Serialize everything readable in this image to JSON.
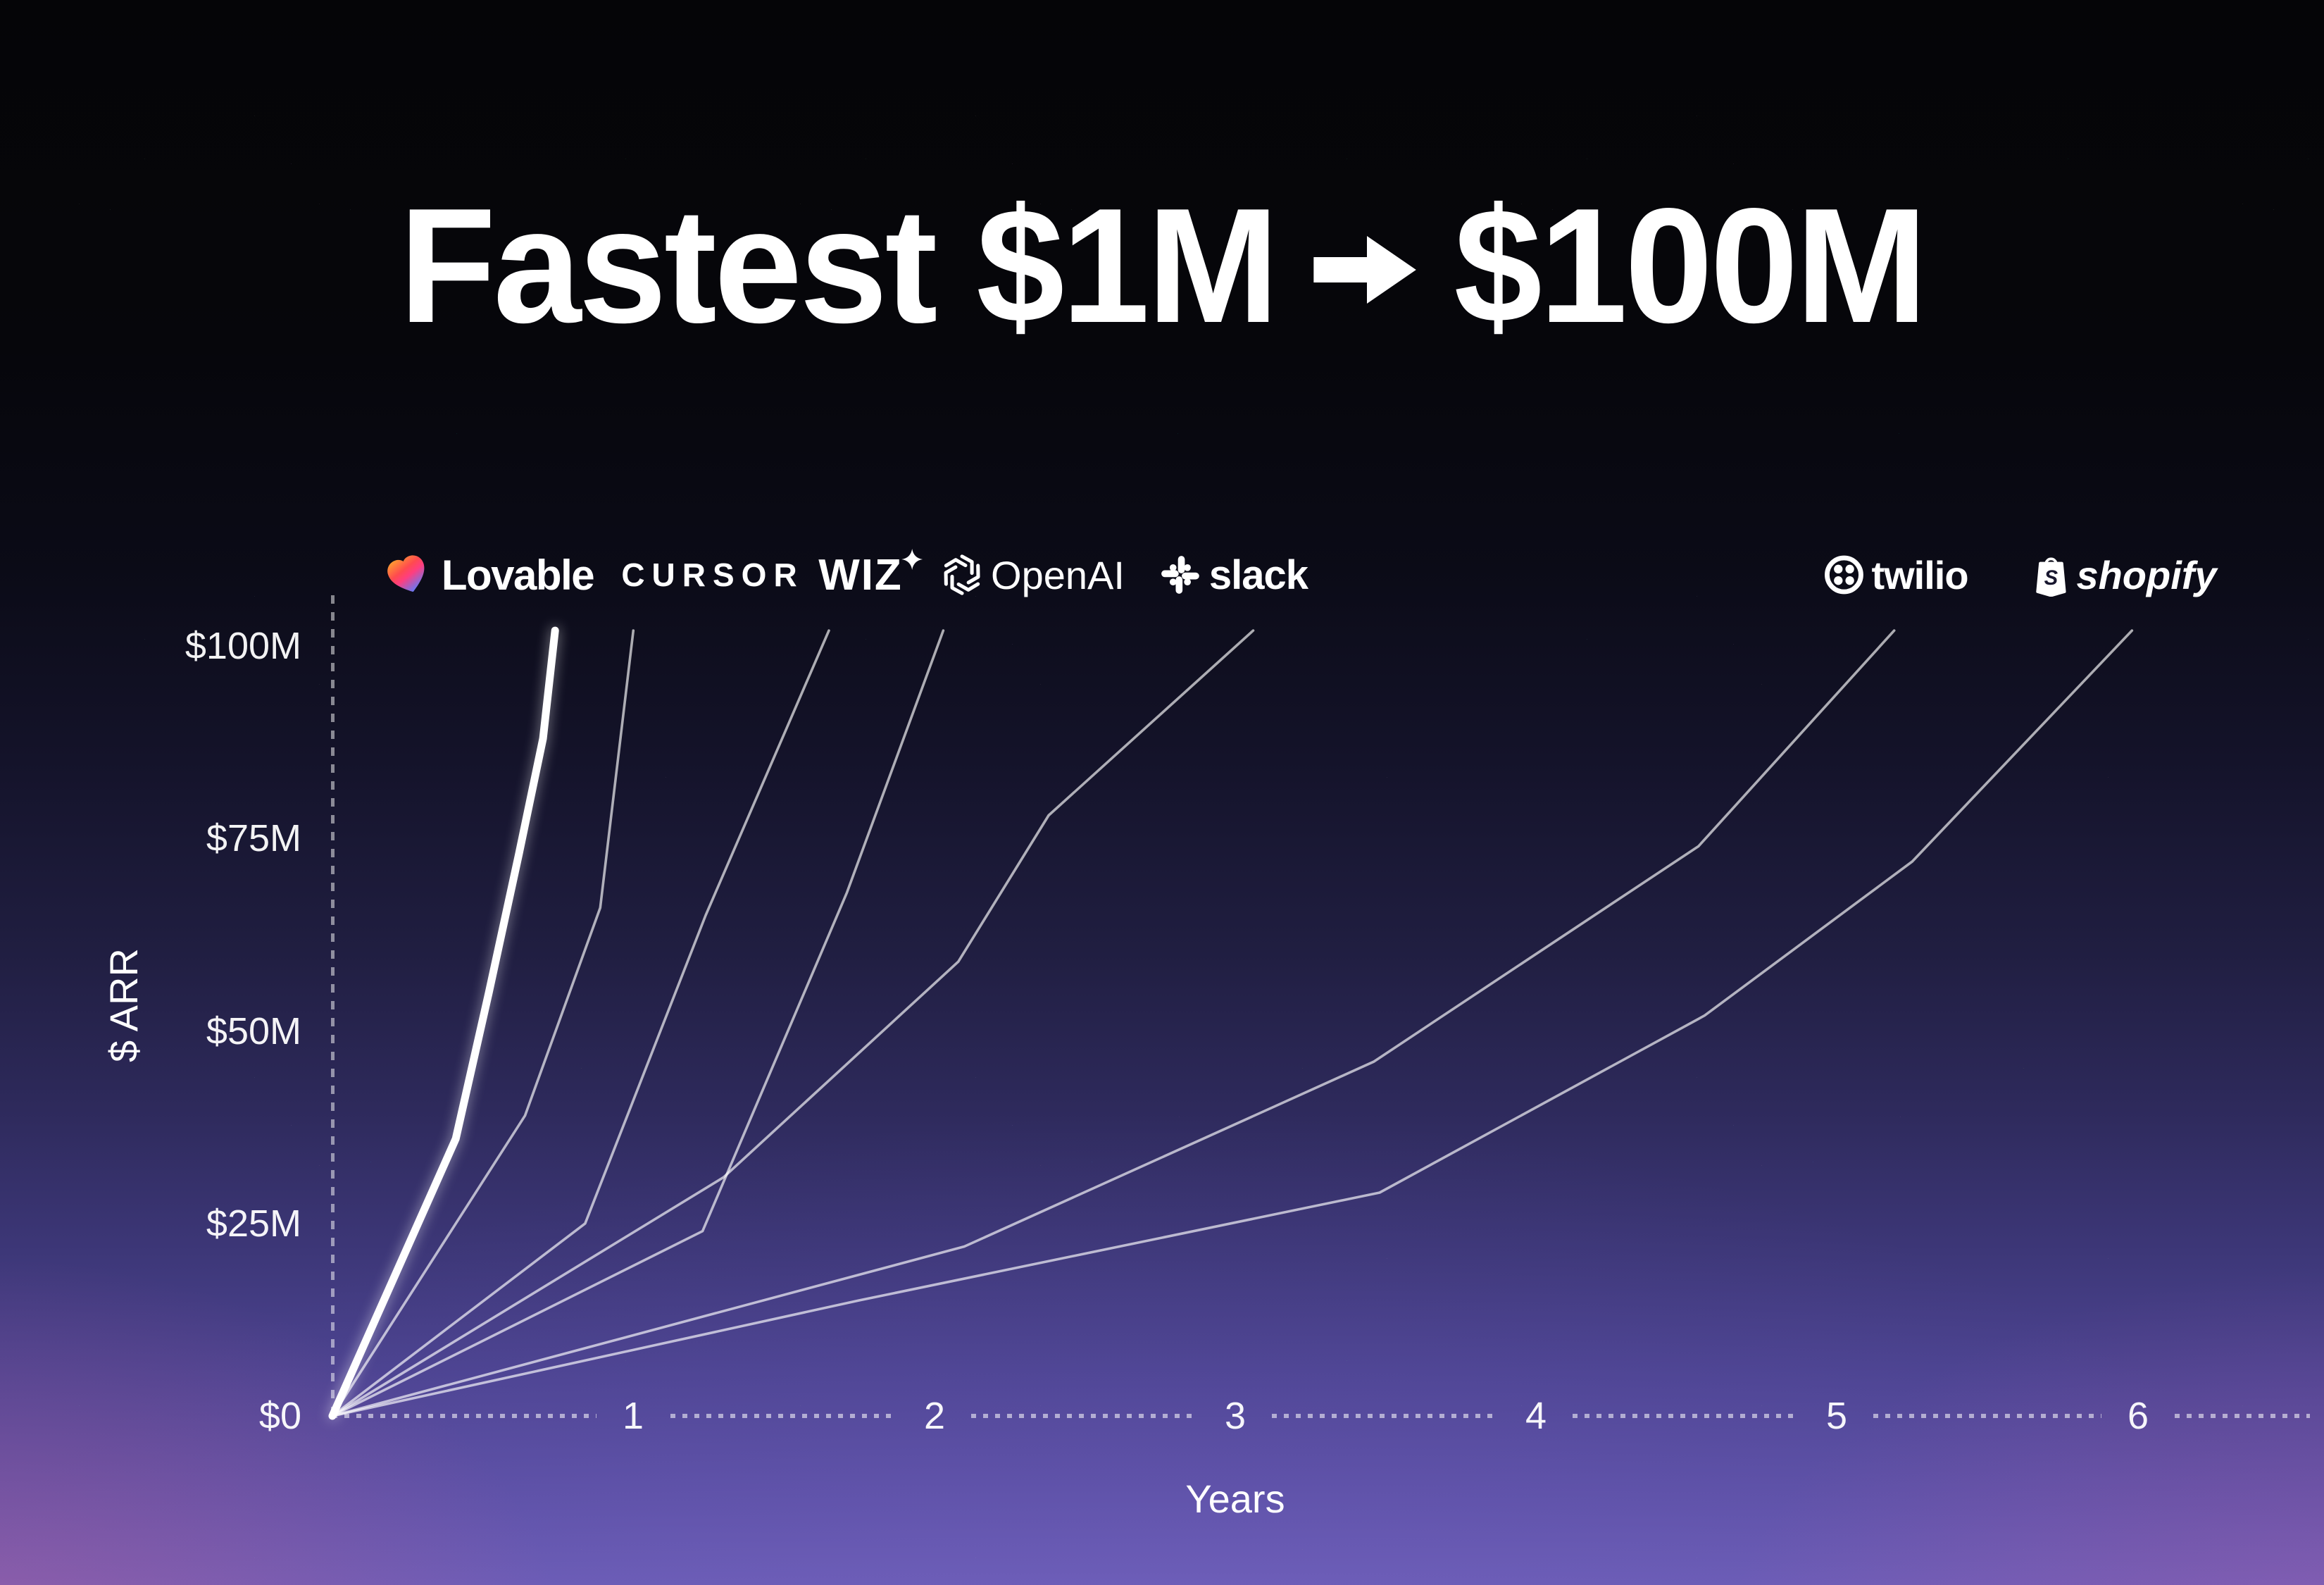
{
  "title": {
    "part1": "Fastest $1M",
    "arrow": "→",
    "part2": "$100M"
  },
  "axes": {
    "y_label": "$ ARR",
    "x_label": "Years"
  },
  "logos": [
    {
      "id": "lovable",
      "label": "Lovable",
      "icon": "lovable-heart-icon"
    },
    {
      "id": "cursor",
      "label": "CURSOR",
      "icon": "cursor-wordmark"
    },
    {
      "id": "wiz",
      "label": "WIZ",
      "icon": "wiz-sparkle-icon"
    },
    {
      "id": "openai",
      "label": "OpenAI",
      "icon": "openai-logo-icon"
    },
    {
      "id": "slack",
      "label": "slack",
      "icon": "slack-logo-icon"
    },
    {
      "id": "twilio",
      "label": "twilio",
      "icon": "twilio-logo-icon"
    },
    {
      "id": "shopify",
      "label": "shopify",
      "icon": "shopify-bag-icon"
    }
  ],
  "colors": {
    "background_top": "#050507",
    "background_bottom": "#6a5cb4",
    "corner_glow": "#c864a0",
    "line": "rgba(255,255,255,0.66)",
    "emphasis_line": "#ffffff",
    "heart_gradient": [
      "#ffa02f",
      "#ff4a4f",
      "#ff3e7f",
      "#5f7cfa"
    ]
  },
  "chart_data": {
    "type": "line",
    "title": "Fastest $1M → $100M",
    "xlabel": "Years",
    "ylabel": "$ ARR",
    "x_ticks": [
      "1",
      "2",
      "3",
      "4",
      "5",
      "6"
    ],
    "y_ticks": [
      "$100M",
      "$75M",
      "$50M",
      "$25M",
      "$0"
    ],
    "y_tick_values": [
      100,
      75,
      50,
      25,
      0
    ],
    "xlim": [
      0,
      6.6
    ],
    "ylim": [
      0,
      105
    ],
    "grid": false,
    "legend_position": "logo row above the top of each line",
    "series": [
      {
        "name": "Lovable",
        "emphasis": true,
        "years_to_100m": 0.74,
        "points": [
          [
            0,
            0
          ],
          [
            0.41,
            36
          ],
          [
            0.52,
            55
          ],
          [
            0.62,
            73
          ],
          [
            0.7,
            88
          ],
          [
            0.74,
            102
          ]
        ]
      },
      {
        "name": "Cursor",
        "emphasis": false,
        "years_to_100m": 1.0,
        "points": [
          [
            0,
            0
          ],
          [
            0.64,
            39
          ],
          [
            0.89,
            66
          ],
          [
            1.0,
            102
          ]
        ]
      },
      {
        "name": "Wiz",
        "emphasis": false,
        "years_to_100m": 1.65,
        "points": [
          [
            0,
            0
          ],
          [
            0.84,
            25
          ],
          [
            1.24,
            65
          ],
          [
            1.65,
            102
          ]
        ]
      },
      {
        "name": "OpenAI",
        "emphasis": false,
        "years_to_100m": 2.03,
        "points": [
          [
            0,
            0
          ],
          [
            1.23,
            24
          ],
          [
            1.71,
            68
          ],
          [
            2.03,
            102
          ]
        ]
      },
      {
        "name": "Slack",
        "emphasis": false,
        "years_to_100m": 3.06,
        "points": [
          [
            0,
            0
          ],
          [
            1.3,
            31
          ],
          [
            2.08,
            59
          ],
          [
            2.38,
            78
          ],
          [
            3.06,
            102
          ]
        ]
      },
      {
        "name": "Twilio",
        "emphasis": false,
        "years_to_100m": 5.19,
        "points": [
          [
            0,
            0
          ],
          [
            2.1,
            22
          ],
          [
            3.46,
            46
          ],
          [
            4.54,
            74
          ],
          [
            5.19,
            102
          ]
        ]
      },
      {
        "name": "Shopify",
        "emphasis": false,
        "years_to_100m": 5.98,
        "points": [
          [
            0,
            0
          ],
          [
            1.75,
            15
          ],
          [
            3.48,
            29
          ],
          [
            4.56,
            52
          ],
          [
            5.25,
            72
          ],
          [
            5.98,
            102
          ]
        ]
      }
    ]
  }
}
